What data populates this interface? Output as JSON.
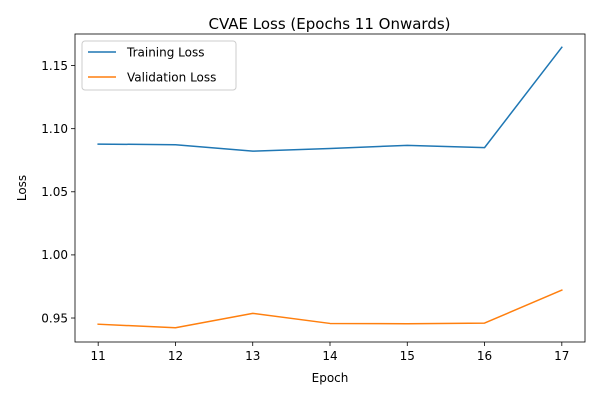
{
  "chart_data": {
    "type": "line",
    "title": "CVAE Loss (Epochs 11 Onwards)",
    "xlabel": "Epoch",
    "ylabel": "Loss",
    "x": [
      11,
      12,
      13,
      14,
      15,
      16,
      17
    ],
    "xlim": [
      10.7,
      17.3
    ],
    "ylim": [
      0.931,
      1.175
    ],
    "x_ticks": [
      11,
      12,
      13,
      14,
      15,
      16,
      17
    ],
    "y_ticks": [
      0.95,
      1.0,
      1.05,
      1.1,
      1.15
    ],
    "y_tick_labels": [
      "0.95",
      "1.00",
      "1.05",
      "1.10",
      "1.15"
    ],
    "grid": false,
    "legend_position": "top-left",
    "series": [
      {
        "name": "Training Loss",
        "color": "#1f77b4",
        "values": [
          1.0878,
          1.0873,
          1.0822,
          1.0843,
          1.0868,
          1.085,
          1.1645
        ]
      },
      {
        "name": "Validation Loss",
        "color": "#ff7f0e",
        "values": [
          0.9451,
          0.9423,
          0.9537,
          0.9457,
          0.9455,
          0.946,
          0.9721
        ]
      }
    ]
  }
}
